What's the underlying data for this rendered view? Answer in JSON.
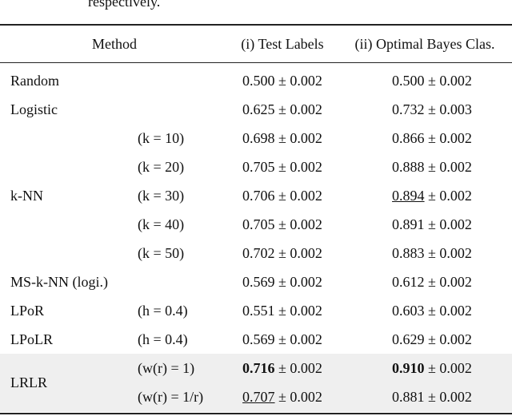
{
  "caption_fragment": "respectively.",
  "table": {
    "header": {
      "method": "Method",
      "test": "(i) Test Labels",
      "bayes": "(ii) Optimal Bayes Clas."
    },
    "groups": [
      {
        "method": "Random",
        "rows": [
          {
            "param": "",
            "test": {
              "mean": "0.500",
              "sd": "± 0.002"
            },
            "bayes": {
              "mean": "0.500",
              "sd": "± 0.002"
            }
          }
        ]
      },
      {
        "method": "Logistic",
        "rows": [
          {
            "param": "",
            "test": {
              "mean": "0.625",
              "sd": "± 0.002"
            },
            "bayes": {
              "mean": "0.732",
              "sd": "± 0.003"
            }
          }
        ]
      },
      {
        "method": "k-NN",
        "rows": [
          {
            "param": "(k = 10)",
            "test": {
              "mean": "0.698",
              "sd": "± 0.002"
            },
            "bayes": {
              "mean": "0.866",
              "sd": "± 0.002"
            }
          },
          {
            "param": "(k = 20)",
            "test": {
              "mean": "0.705",
              "sd": "± 0.002"
            },
            "bayes": {
              "mean": "0.888",
              "sd": "± 0.002"
            }
          },
          {
            "param": "(k = 30)",
            "test": {
              "mean": "0.706",
              "sd": "± 0.002"
            },
            "bayes": {
              "mean": "0.894",
              "sd": "± 0.002",
              "style": "underline"
            }
          },
          {
            "param": "(k = 40)",
            "test": {
              "mean": "0.705",
              "sd": "± 0.002"
            },
            "bayes": {
              "mean": "0.891",
              "sd": "± 0.002"
            }
          },
          {
            "param": "(k = 50)",
            "test": {
              "mean": "0.702",
              "sd": "± 0.002"
            },
            "bayes": {
              "mean": "0.883",
              "sd": "± 0.002"
            }
          }
        ]
      },
      {
        "method": "MS-k-NN (logi.)",
        "rows": [
          {
            "param": "",
            "test": {
              "mean": "0.569",
              "sd": "± 0.002"
            },
            "bayes": {
              "mean": "0.612",
              "sd": "± 0.002"
            }
          }
        ]
      },
      {
        "method": "LPoR",
        "rows": [
          {
            "param": "(h = 0.4)",
            "test": {
              "mean": "0.551",
              "sd": "± 0.002"
            },
            "bayes": {
              "mean": "0.603",
              "sd": "± 0.002"
            }
          }
        ]
      },
      {
        "method": "LPoLR",
        "rows": [
          {
            "param": "(h = 0.4)",
            "test": {
              "mean": "0.569",
              "sd": "± 0.002"
            },
            "bayes": {
              "mean": "0.629",
              "sd": "± 0.002"
            }
          }
        ]
      },
      {
        "method": "LRLR",
        "shaded": true,
        "rows": [
          {
            "param": "(w(r) = 1)",
            "test": {
              "mean": "0.716",
              "sd": "± 0.002",
              "style": "bold"
            },
            "bayes": {
              "mean": "0.910",
              "sd": "± 0.002",
              "style": "bold"
            }
          },
          {
            "param": "(w(r) = 1/r)",
            "test": {
              "mean": "0.707",
              "sd": "± 0.002",
              "style": "underline"
            },
            "bayes": {
              "mean": "0.881",
              "sd": "± 0.002"
            }
          }
        ]
      }
    ]
  }
}
